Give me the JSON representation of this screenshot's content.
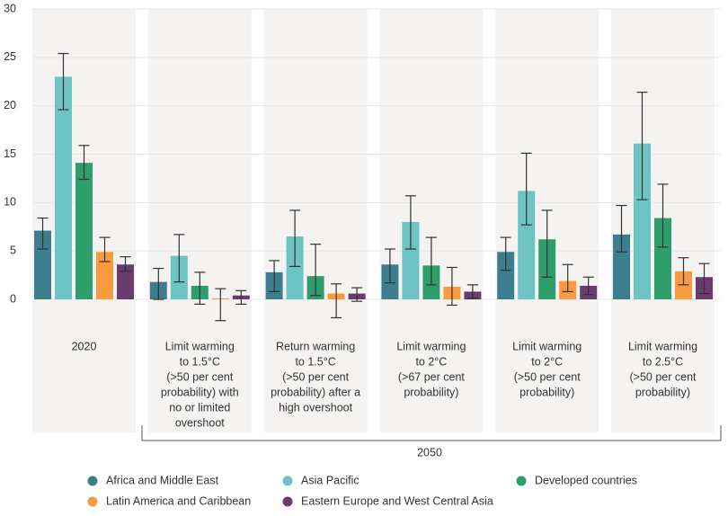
{
  "chart_data": {
    "type": "bar",
    "categories": [
      [
        "2020"
      ],
      [
        "Limit warming",
        "to 1.5°C",
        "(>50 per cent",
        "probability) with",
        "no or limited",
        "overshoot"
      ],
      [
        "Return warming",
        "to 1.5°C",
        "(>50 per cent",
        "probability) after a",
        "high overshoot"
      ],
      [
        "Limit warming",
        "to 2°C",
        "(>67 per cent",
        "probability)"
      ],
      [
        "Limit warming",
        "to 2°C",
        "(>50 per cent",
        "probability)"
      ],
      [
        "Limit warming",
        "to 2.5°C",
        "(>50 per cent",
        "probability)"
      ]
    ],
    "group_label": "2050",
    "series": [
      {
        "name": "Africa and Middle East",
        "color": "#3c7d8e",
        "values": [
          7.1,
          1.8,
          2.8,
          3.6,
          4.9,
          6.7
        ],
        "error_low": [
          5.2,
          0,
          0.8,
          1.7,
          3.0,
          4.9
        ],
        "error_high": [
          8.4,
          3.2,
          4.0,
          5.2,
          6.4,
          9.7
        ]
      },
      {
        "name": "Asia Pacific",
        "color": "#6ec4c4",
        "values": [
          23,
          4.5,
          6.5,
          8.0,
          11.2,
          16.1
        ],
        "error_low": [
          19.6,
          1.8,
          3.4,
          5.2,
          7.7,
          10.3
        ],
        "error_high": [
          25.4,
          6.7,
          9.2,
          10.7,
          15.1,
          21.4
        ]
      },
      {
        "name": "Developed countries",
        "color": "#2f9e6d",
        "values": [
          14.1,
          1.4,
          2.4,
          3.5,
          6.2,
          8.4
        ],
        "error_low": [
          12.4,
          -0.5,
          0.4,
          1.5,
          2.3,
          5.4
        ],
        "error_high": [
          15.9,
          2.8,
          5.7,
          6.4,
          9.2,
          11.9
        ]
      },
      {
        "name": "Latin America and Caribbean",
        "color": "#fa9a3f",
        "values": [
          4.9,
          0.1,
          0.6,
          1.3,
          1.9,
          2.9
        ],
        "error_low": [
          3.9,
          -2.2,
          -1.9,
          -0.6,
          0.8,
          1.5
        ],
        "error_high": [
          6.4,
          1.1,
          1.6,
          3.3,
          3.6,
          4.3
        ]
      },
      {
        "name": "Eastern Europe and West Central Asia",
        "color": "#6a3b6d",
        "values": [
          3.6,
          0.4,
          0.6,
          0.8,
          1.4,
          2.3
        ],
        "error_low": [
          2.9,
          -0.5,
          -0.2,
          0.1,
          0.5,
          0.6
        ],
        "error_high": [
          4.4,
          0.9,
          1.2,
          1.5,
          2.3,
          3.7
        ]
      }
    ],
    "ylim": [
      0,
      30
    ],
    "yticks": [
      0,
      5,
      10,
      15,
      20,
      25,
      30
    ],
    "grid": true
  }
}
